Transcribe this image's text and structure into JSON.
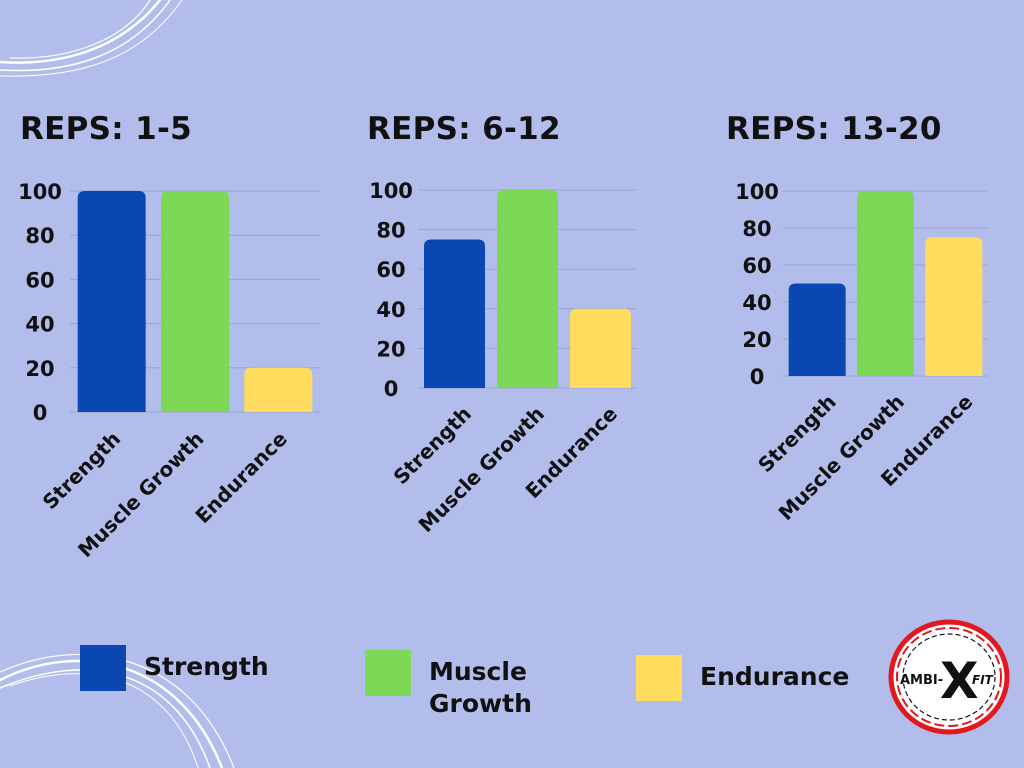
{
  "colors": {
    "background": "#b3bdec",
    "strength": "#0a47b0",
    "muscle_growth": "#7dd856",
    "endurance": "#ffdc5e",
    "gridline": "#9aa3cf"
  },
  "chart_data": [
    {
      "type": "bar",
      "title": "REPS: 1-5",
      "categories": [
        "Strength",
        "Muscle Growth",
        "Endurance"
      ],
      "values": [
        100,
        100,
        20
      ],
      "yticks": [
        "0",
        "20",
        "40",
        "60",
        "80",
        "100"
      ],
      "ylim": [
        0,
        100
      ],
      "grid": true
    },
    {
      "type": "bar",
      "title": "REPS: 6-12",
      "categories": [
        "Strength",
        "Muscle Growth",
        "Endurance"
      ],
      "values": [
        75,
        100,
        40
      ],
      "yticks": [
        "0",
        "20",
        "40",
        "60",
        "80",
        "100"
      ],
      "ylim": [
        0,
        100
      ],
      "grid": true
    },
    {
      "type": "bar",
      "title": "REPS: 13-20",
      "categories": [
        "Strength",
        "Muscle Growth",
        "Endurance"
      ],
      "values": [
        50,
        100,
        75
      ],
      "yticks": [
        "0",
        "20",
        "40",
        "60",
        "80",
        "100"
      ],
      "ylim": [
        0,
        100
      ],
      "grid": true
    }
  ],
  "legend": [
    {
      "label": "Strength",
      "color": "#0a47b0"
    },
    {
      "label": "Muscle Growth",
      "color": "#7dd856"
    },
    {
      "label": "Endurance",
      "color": "#ffdc5e"
    }
  ],
  "logo": {
    "text_left": "AMBI-",
    "text_mark": "X",
    "text_right": "FIT"
  }
}
